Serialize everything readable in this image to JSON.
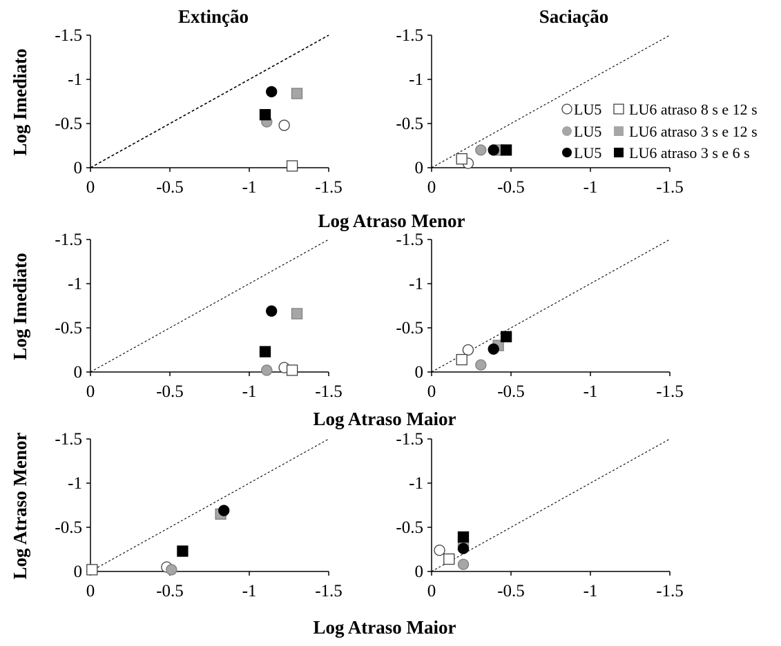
{
  "figure": {
    "column_titles": [
      "Extinção",
      "Saciação"
    ],
    "axis_labels": {
      "log_imediato": "Log Imediato",
      "log_atraso_menor": "Log  Atraso Menor",
      "log_atraso_maior": "Log  Atraso Maior"
    },
    "legend": [
      {
        "label": "LU5",
        "symbol": "circle",
        "fill": "#ffffff"
      },
      {
        "label": "LU6 atraso 8 s e 12 s",
        "symbol": "square",
        "fill": "#ffffff"
      },
      {
        "label": "LU5",
        "symbol": "circle",
        "fill": "#a6a6a6"
      },
      {
        "label": "LU6 atraso 3 s e 12 s",
        "symbol": "square",
        "fill": "#a6a6a6"
      },
      {
        "label": "LU5",
        "symbol": "circle",
        "fill": "#000000"
      },
      {
        "label": "LU6 atraso 3 s e 6 s",
        "symbol": "square",
        "fill": "#000000"
      }
    ],
    "colors": {
      "open": "#ffffff",
      "gray": "#a6a6a6",
      "black": "#000000",
      "outline": "#404040"
    }
  },
  "chart_data": [
    {
      "type": "scatter",
      "row": 1,
      "column": "Extinção",
      "xlabel": "Log  Atraso Menor",
      "ylabel": "Log Imediato",
      "xlim": [
        0,
        -1.5
      ],
      "ylim": [
        0,
        -1.5
      ],
      "xticks": [
        "0",
        "-0.5",
        "-1",
        "-1.5"
      ],
      "yticks": [
        "0",
        "-0.5",
        "-1",
        "-1.5"
      ],
      "identity_line": true,
      "series": [
        {
          "name": "LU5 atraso 8 s e 12 s",
          "marker": "circle",
          "fill": "#ffffff",
          "points": [
            [
              -1.22,
              -0.48
            ]
          ]
        },
        {
          "name": "LU6 atraso 8 s e 12 s",
          "marker": "square",
          "fill": "#ffffff",
          "points": [
            [
              -1.27,
              -0.02
            ]
          ]
        },
        {
          "name": "LU5 atraso 3 s e 12 s",
          "marker": "circle",
          "fill": "#a6a6a6",
          "points": [
            [
              -1.11,
              -0.52
            ]
          ]
        },
        {
          "name": "LU6 atraso 3 s e 12 s",
          "marker": "square",
          "fill": "#a6a6a6",
          "points": [
            [
              -1.3,
              -0.84
            ]
          ]
        },
        {
          "name": "LU5 atraso 3 s e 6 s",
          "marker": "circle",
          "fill": "#000000",
          "points": [
            [
              -1.14,
              -0.86
            ]
          ]
        },
        {
          "name": "LU6 atraso 3 s e 6 s",
          "marker": "square",
          "fill": "#000000",
          "points": [
            [
              -1.1,
              -0.6
            ]
          ]
        }
      ]
    },
    {
      "type": "scatter",
      "row": 1,
      "column": "Saciação",
      "xlabel": "Log  Atraso Menor",
      "ylabel": "Log Imediato",
      "xlim": [
        0,
        -1.5
      ],
      "ylim": [
        0,
        -1.5
      ],
      "xticks": [
        "0",
        "-0.5",
        "-1",
        "-1.5"
      ],
      "yticks": [
        "0",
        "-0.5",
        "-1",
        "-1.5"
      ],
      "identity_line": true,
      "series": [
        {
          "name": "LU5 atraso 8 s e 12 s",
          "marker": "circle",
          "fill": "#ffffff",
          "points": [
            [
              -0.23,
              -0.05
            ]
          ]
        },
        {
          "name": "LU6 atraso 8 s e 12 s",
          "marker": "square",
          "fill": "#ffffff",
          "points": [
            [
              -0.19,
              -0.1
            ]
          ]
        },
        {
          "name": "LU5 atraso 3 s e 12 s",
          "marker": "circle",
          "fill": "#a6a6a6",
          "points": [
            [
              -0.31,
              -0.2
            ]
          ]
        },
        {
          "name": "LU6 atraso 3 s e 12 s",
          "marker": "square",
          "fill": "#a6a6a6",
          "points": [
            [
              -0.42,
              -0.2
            ]
          ]
        },
        {
          "name": "LU5 atraso 3 s e 6 s",
          "marker": "circle",
          "fill": "#000000",
          "points": [
            [
              -0.39,
              -0.2
            ]
          ]
        },
        {
          "name": "LU6 atraso 3 s e 6 s",
          "marker": "square",
          "fill": "#000000",
          "points": [
            [
              -0.47,
              -0.2
            ]
          ]
        }
      ]
    },
    {
      "type": "scatter",
      "row": 2,
      "column": "Extinção",
      "xlabel": "Log  Atraso Maior",
      "ylabel": "Log Imediato",
      "xlim": [
        0,
        -1.5
      ],
      "ylim": [
        0,
        -1.5
      ],
      "xticks": [
        "0",
        "-0.5",
        "-1",
        "-1.5"
      ],
      "yticks": [
        "0",
        "-0.5",
        "-1",
        "-1.5"
      ],
      "identity_line": true,
      "series": [
        {
          "name": "LU5 atraso 8 s e 12 s",
          "marker": "circle",
          "fill": "#ffffff",
          "points": [
            [
              -1.22,
              -0.05
            ]
          ]
        },
        {
          "name": "LU6 atraso 8 s e 12 s",
          "marker": "square",
          "fill": "#ffffff",
          "points": [
            [
              -1.27,
              -0.02
            ]
          ]
        },
        {
          "name": "LU5 atraso 3 s e 12 s",
          "marker": "circle",
          "fill": "#a6a6a6",
          "points": [
            [
              -1.11,
              -0.02
            ]
          ]
        },
        {
          "name": "LU6 atraso 3 s e 12 s",
          "marker": "square",
          "fill": "#a6a6a6",
          "points": [
            [
              -1.3,
              -0.66
            ]
          ]
        },
        {
          "name": "LU5 atraso 3 s e 6 s",
          "marker": "circle",
          "fill": "#000000",
          "points": [
            [
              -1.14,
              -0.69
            ]
          ]
        },
        {
          "name": "LU6 atraso 3 s e 6 s",
          "marker": "square",
          "fill": "#000000",
          "points": [
            [
              -1.1,
              -0.23
            ]
          ]
        }
      ]
    },
    {
      "type": "scatter",
      "row": 2,
      "column": "Saciação",
      "xlabel": "Log  Atraso Maior",
      "ylabel": "Log Imediato",
      "xlim": [
        0,
        -1.5
      ],
      "ylim": [
        0,
        -1.5
      ],
      "xticks": [
        "0",
        "-0.5",
        "-1",
        "-1.5"
      ],
      "yticks": [
        "0",
        "-0.5",
        "-1",
        "-1.5"
      ],
      "identity_line": true,
      "series": [
        {
          "name": "LU5 atraso 8 s e 12 s",
          "marker": "circle",
          "fill": "#ffffff",
          "points": [
            [
              -0.23,
              -0.25
            ]
          ]
        },
        {
          "name": "LU6 atraso 8 s e 12 s",
          "marker": "square",
          "fill": "#ffffff",
          "points": [
            [
              -0.19,
              -0.14
            ]
          ]
        },
        {
          "name": "LU5 atraso 3 s e 12 s",
          "marker": "circle",
          "fill": "#a6a6a6",
          "points": [
            [
              -0.31,
              -0.08
            ]
          ]
        },
        {
          "name": "LU6 atraso 3 s e 12 s",
          "marker": "square",
          "fill": "#a6a6a6",
          "points": [
            [
              -0.42,
              -0.3
            ]
          ]
        },
        {
          "name": "LU5 atraso 3 s e 6 s",
          "marker": "circle",
          "fill": "#000000",
          "points": [
            [
              -0.39,
              -0.26
            ]
          ]
        },
        {
          "name": "LU6 atraso 3 s e 6 s",
          "marker": "square",
          "fill": "#000000",
          "points": [
            [
              -0.47,
              -0.4
            ]
          ]
        }
      ]
    },
    {
      "type": "scatter",
      "row": 3,
      "column": "Extinção",
      "xlabel": "Log  Atraso Maior",
      "ylabel": "Log  Atraso Menor",
      "xlim": [
        0,
        -1.5
      ],
      "ylim": [
        0,
        -1.5
      ],
      "xticks": [
        "0",
        "-0.5",
        "-1",
        "-1.5"
      ],
      "yticks": [
        "0",
        "-0.5",
        "-1",
        "-1.5"
      ],
      "identity_line": true,
      "series": [
        {
          "name": "LU5 atraso 8 s e 12 s",
          "marker": "circle",
          "fill": "#ffffff",
          "points": [
            [
              -0.48,
              -0.05
            ]
          ]
        },
        {
          "name": "LU6 atraso 8 s e 12 s",
          "marker": "square",
          "fill": "#ffffff",
          "points": [
            [
              -0.01,
              -0.02
            ]
          ]
        },
        {
          "name": "LU5 atraso 3 s e 12 s",
          "marker": "circle",
          "fill": "#a6a6a6",
          "points": [
            [
              -0.51,
              -0.02
            ]
          ]
        },
        {
          "name": "LU6 atraso 3 s e 12 s",
          "marker": "square",
          "fill": "#a6a6a6",
          "points": [
            [
              -0.82,
              -0.65
            ]
          ]
        },
        {
          "name": "LU5 atraso 3 s e 6 s",
          "marker": "circle",
          "fill": "#000000",
          "points": [
            [
              -0.84,
              -0.69
            ]
          ]
        },
        {
          "name": "LU6 atraso 3 s e 6 s",
          "marker": "square",
          "fill": "#000000",
          "points": [
            [
              -0.58,
              -0.23
            ]
          ]
        }
      ]
    },
    {
      "type": "scatter",
      "row": 3,
      "column": "Saciação",
      "xlabel": "Log  Atraso Maior",
      "ylabel": "Log  Atraso Menor",
      "xlim": [
        0,
        -1.5
      ],
      "ylim": [
        0,
        -1.5
      ],
      "xticks": [
        "0",
        "-0.5",
        "-1",
        "-1.5"
      ],
      "yticks": [
        "0",
        "-0.5",
        "-1",
        "-1.5"
      ],
      "identity_line": true,
      "series": [
        {
          "name": "LU5 atraso 8 s e 12 s",
          "marker": "circle",
          "fill": "#ffffff",
          "points": [
            [
              -0.05,
              -0.24
            ]
          ]
        },
        {
          "name": "LU6 atraso 8 s e 12 s",
          "marker": "square",
          "fill": "#ffffff",
          "points": [
            [
              -0.11,
              -0.14
            ]
          ]
        },
        {
          "name": "LU5 atraso 3 s e 12 s",
          "marker": "circle",
          "fill": "#a6a6a6",
          "points": [
            [
              -0.2,
              -0.08
            ]
          ]
        },
        {
          "name": "LU6 atraso 3 s e 12 s",
          "marker": "square",
          "fill": "#a6a6a6",
          "points": [
            [
              -0.2,
              -0.3
            ]
          ]
        },
        {
          "name": "LU5 atraso 3 s e 6 s",
          "marker": "circle",
          "fill": "#000000",
          "points": [
            [
              -0.2,
              -0.26
            ]
          ]
        },
        {
          "name": "LU6 atraso 3 s e 6 s",
          "marker": "square",
          "fill": "#000000",
          "points": [
            [
              -0.2,
              -0.39
            ]
          ]
        }
      ]
    }
  ]
}
